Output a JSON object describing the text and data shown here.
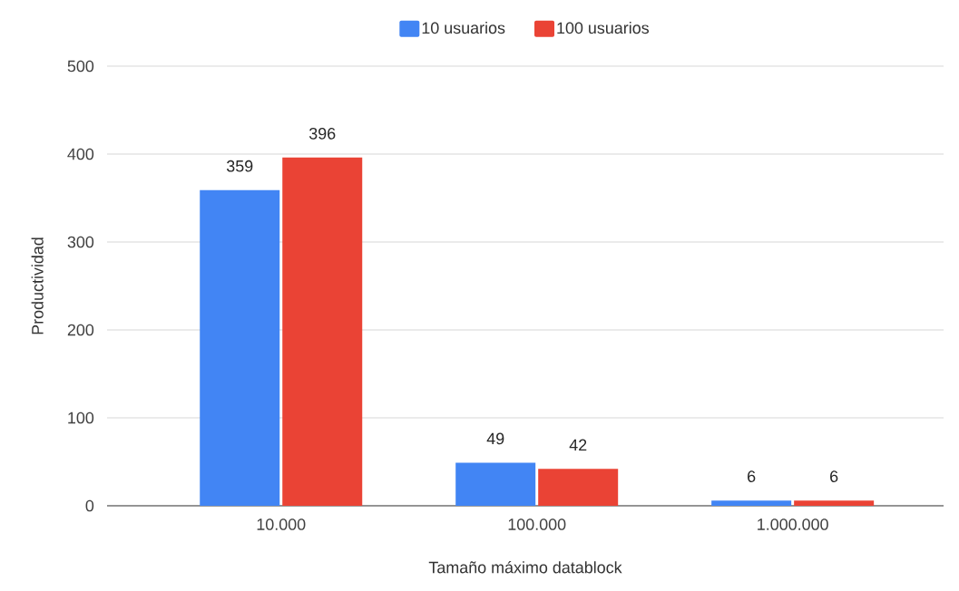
{
  "chart_data": {
    "type": "bar",
    "xlabel": "Tamaño máximo datablock",
    "ylabel": "Productividad",
    "categories": [
      "10.000",
      "100.000",
      "1.000.000"
    ],
    "series": [
      {
        "name": "10 usuarios",
        "color": "#4285f4",
        "values": [
          359,
          49,
          6
        ]
      },
      {
        "name": "100 usuarios",
        "color": "#ea4335",
        "values": [
          396,
          42,
          6
        ]
      }
    ],
    "ylim": [
      0,
      500
    ],
    "yticks": [
      0,
      100,
      200,
      300,
      400,
      500
    ],
    "grid": "y",
    "legend": "top",
    "data_labels": true
  }
}
